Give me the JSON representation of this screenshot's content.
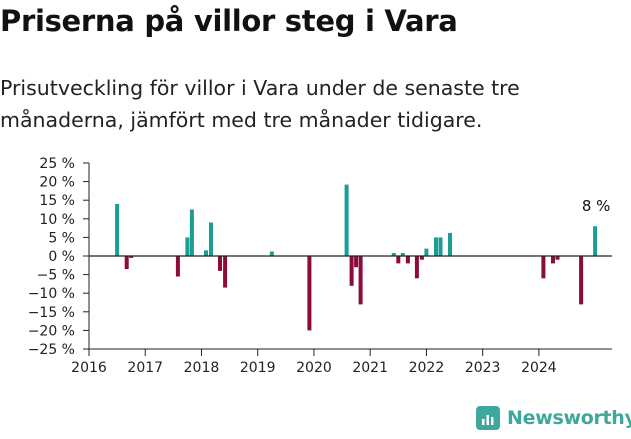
{
  "header": {
    "title": "Priserna på villor steg i Vara",
    "subtitle": "Prisutveckling för villor i Vara under de senaste tre månaderna, jämfört med tre månader tidigare."
  },
  "brand": {
    "name": "Newsworthy",
    "icon": "bar-chart-logo-icon"
  },
  "colors": {
    "positive": "#1a9e94",
    "negative": "#8c0a3c",
    "axis": "#222222",
    "brand": "#3fa79c"
  },
  "chart_data": {
    "type": "bar",
    "title": "",
    "xlabel": "",
    "ylabel": "",
    "ylim": [
      -25,
      25
    ],
    "xlim": [
      2016,
      2025.3
    ],
    "y_ticks": [
      {
        "value": 25,
        "label": "25 %"
      },
      {
        "value": 20,
        "label": "20 %"
      },
      {
        "value": 15,
        "label": "15 %"
      },
      {
        "value": 10,
        "label": "10 %"
      },
      {
        "value": 5,
        "label": "5 %"
      },
      {
        "value": 0,
        "label": "0 %"
      },
      {
        "value": -5,
        "label": "−5 %"
      },
      {
        "value": -10,
        "label": "−10 %"
      },
      {
        "value": -15,
        "label": "−15 %"
      },
      {
        "value": -20,
        "label": "−20 %"
      },
      {
        "value": -25,
        "label": "−25 %"
      }
    ],
    "x_ticks": [
      {
        "value": 2016,
        "label": "2016"
      },
      {
        "value": 2017,
        "label": "2017"
      },
      {
        "value": 2018,
        "label": "2018"
      },
      {
        "value": 2019,
        "label": "2019"
      },
      {
        "value": 2020,
        "label": "2020"
      },
      {
        "value": 2021,
        "label": "2021"
      },
      {
        "value": 2022,
        "label": "2022"
      },
      {
        "value": 2023,
        "label": "2023"
      },
      {
        "value": 2024,
        "label": "2024"
      }
    ],
    "grid": false,
    "legend": "none",
    "series": [
      {
        "points": [
          {
            "x": 2016.5,
            "y": 14
          },
          {
            "x": 2016.67,
            "y": -3.5
          },
          {
            "x": 2016.75,
            "y": -0.5
          },
          {
            "x": 2017.58,
            "y": -5.5
          },
          {
            "x": 2017.75,
            "y": 5
          },
          {
            "x": 2017.83,
            "y": 12.5
          },
          {
            "x": 2018.08,
            "y": 1.5
          },
          {
            "x": 2018.17,
            "y": 9
          },
          {
            "x": 2018.33,
            "y": -4
          },
          {
            "x": 2018.42,
            "y": -8.5
          },
          {
            "x": 2019.25,
            "y": 1.2
          },
          {
            "x": 2019.92,
            "y": -20
          },
          {
            "x": 2020.58,
            "y": 19.2
          },
          {
            "x": 2020.67,
            "y": -8
          },
          {
            "x": 2020.75,
            "y": -3
          },
          {
            "x": 2020.83,
            "y": -13
          },
          {
            "x": 2021.42,
            "y": 0.8
          },
          {
            "x": 2021.5,
            "y": -2
          },
          {
            "x": 2021.58,
            "y": 0.8
          },
          {
            "x": 2021.67,
            "y": -2
          },
          {
            "x": 2021.83,
            "y": -6
          },
          {
            "x": 2021.92,
            "y": -1
          },
          {
            "x": 2022.0,
            "y": 2
          },
          {
            "x": 2022.17,
            "y": 5
          },
          {
            "x": 2022.25,
            "y": 5
          },
          {
            "x": 2022.42,
            "y": 6.2
          },
          {
            "x": 2024.08,
            "y": -6
          },
          {
            "x": 2024.25,
            "y": -2
          },
          {
            "x": 2024.33,
            "y": -1
          },
          {
            "x": 2024.75,
            "y": -13
          },
          {
            "x": 2025.0,
            "y": 8
          }
        ]
      }
    ],
    "annotations": [
      {
        "x": 2025.0,
        "y": 8,
        "text": "8 %"
      }
    ]
  }
}
